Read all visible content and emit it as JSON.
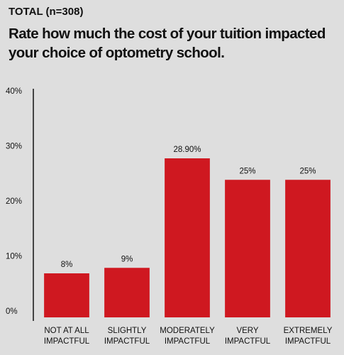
{
  "chart_data": {
    "type": "bar",
    "subtitle": "TOTAL (n=308)",
    "title": "Rate how much the cost of your tuition impacted your choice of optometry school.",
    "categories": [
      "NOT AT ALL\nIMPACTFUL",
      "SLIGHTLY\nIMPACTFUL",
      "MODERATELY\nIMPACTFUL",
      "VERY\nIMPACTFUL",
      "EXTREMELY\nIMPACTFUL"
    ],
    "values": [
      8,
      9,
      28.9,
      25,
      25
    ],
    "value_labels": [
      "8%",
      "9%",
      "28.90%",
      "25%",
      "25%"
    ],
    "color": "#cf1820",
    "ylim": [
      0,
      40
    ],
    "yticks": [
      {
        "value": 0,
        "label": "0%"
      },
      {
        "value": 10,
        "label": "10%"
      },
      {
        "value": 20,
        "label": "20%"
      },
      {
        "value": 30,
        "label": "30%"
      },
      {
        "value": 40,
        "label": "40%"
      }
    ],
    "grid": false
  }
}
